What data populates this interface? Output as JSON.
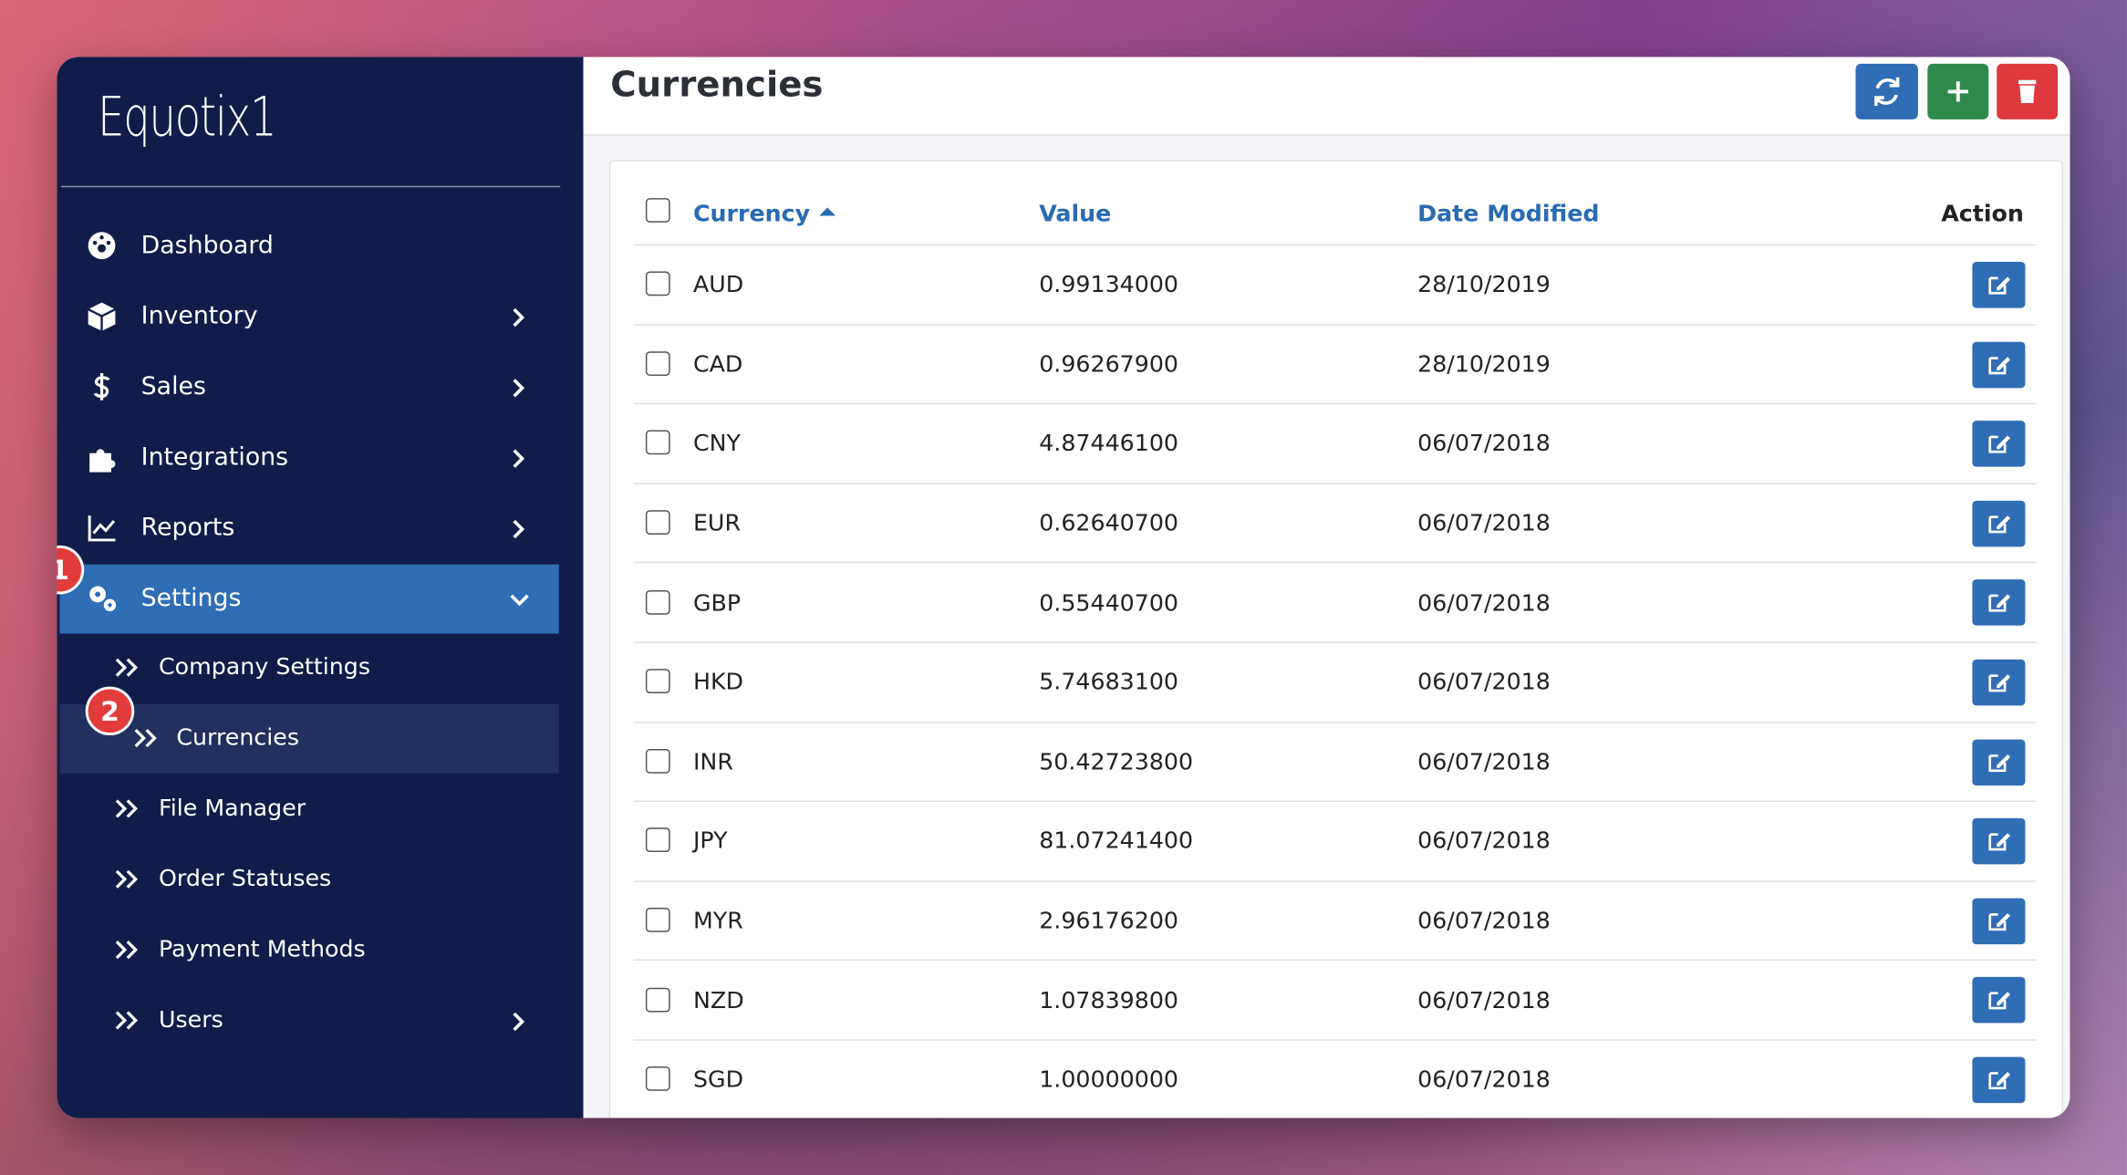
{
  "logo": "Equotix1",
  "sidebar": {
    "nav": [
      "Dashboard",
      "Inventory",
      "Sales",
      "Integrations",
      "Reports",
      "Settings"
    ],
    "subnav": [
      "Company Settings",
      "Currencies",
      "File Manager",
      "Order Statuses",
      "Payment Methods",
      "Users"
    ],
    "badges": [
      "1",
      "2"
    ]
  },
  "header": {
    "title": "Currencies"
  },
  "table": {
    "columns": [
      "Currency",
      "Value",
      "Date Modified",
      "Action"
    ],
    "rows": [
      [
        "AUD",
        "0.99134000",
        "28/10/2019"
      ],
      [
        "CAD",
        "0.96267900",
        "28/10/2019"
      ],
      [
        "CNY",
        "4.87446100",
        "06/07/2018"
      ],
      [
        "EUR",
        "0.62640700",
        "06/07/2018"
      ],
      [
        "GBP",
        "0.55440700",
        "06/07/2018"
      ],
      [
        "HKD",
        "5.74683100",
        "06/07/2018"
      ],
      [
        "INR",
        "50.42723800",
        "06/07/2018"
      ],
      [
        "JPY",
        "81.07241400",
        "06/07/2018"
      ],
      [
        "MYR",
        "2.96176200",
        "06/07/2018"
      ],
      [
        "NZD",
        "1.07839800",
        "06/07/2018"
      ],
      [
        "SGD",
        "1.00000000",
        "06/07/2018"
      ]
    ]
  }
}
